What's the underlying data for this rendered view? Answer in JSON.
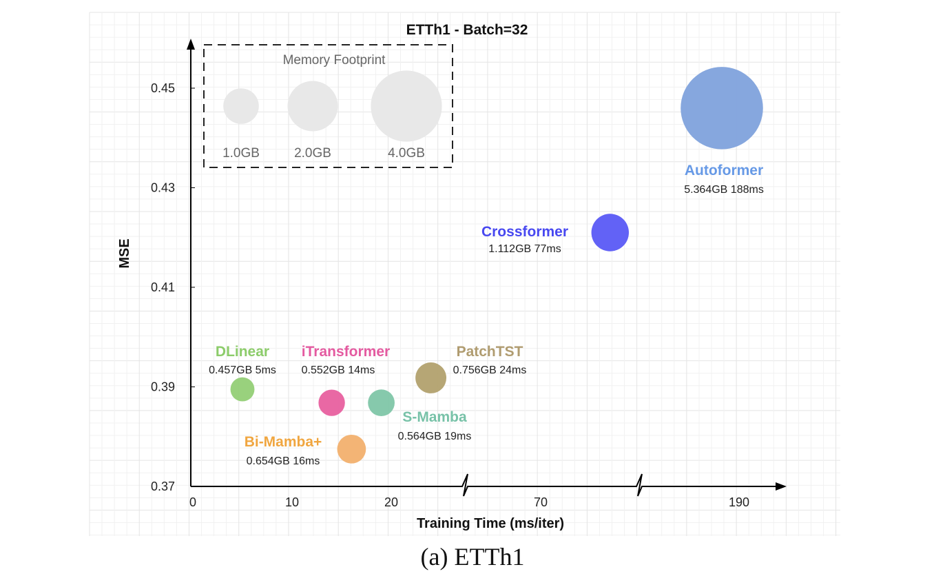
{
  "caption": "(a) ETTh1",
  "chart_data": {
    "type": "scatter",
    "title": "ETTh1 - Batch=32",
    "xlabel": "Training Time (ms/iter)",
    "ylabel": "MSE",
    "x_ticks": [
      "0",
      "10",
      "20",
      "70",
      "190"
    ],
    "y_ticks": [
      "0.37",
      "0.39",
      "0.41",
      "0.43",
      "0.45"
    ],
    "ylim": [
      0.37,
      0.45
    ],
    "x_axis_breaks": true,
    "grid": true,
    "size_encodes": "Memory Footprint",
    "legend": {
      "title": "Memory Footprint",
      "placement": "top-left",
      "entries": [
        {
          "label": "1.0GB",
          "memory_gb": 1.0
        },
        {
          "label": "2.0GB",
          "memory_gb": 2.0
        },
        {
          "label": "4.0GB",
          "memory_gb": 4.0
        }
      ]
    },
    "series": [
      {
        "name": "DLinear",
        "sublabel": "0.457GB 5ms",
        "x": 5,
        "y": 0.3895,
        "memory_gb": 0.457,
        "color": "#93cf76"
      },
      {
        "name": "iTransformer",
        "sublabel": "0.552GB 14ms",
        "x": 14,
        "y": 0.3868,
        "memory_gb": 0.552,
        "color": "#e8609f"
      },
      {
        "name": "S-Mamba",
        "sublabel": "0.564GB 19ms",
        "x": 19,
        "y": 0.3868,
        "memory_gb": 0.564,
        "color": "#7fc6a8"
      },
      {
        "name": "PatchTST",
        "sublabel": "0.756GB 24ms",
        "x": 24,
        "y": 0.3918,
        "memory_gb": 0.756,
        "color": "#b2a16e"
      },
      {
        "name": "Bi-Mamba+",
        "sublabel": "0.654GB 16ms",
        "x": 16,
        "y": 0.3775,
        "memory_gb": 0.654,
        "color": "#f2b06e"
      },
      {
        "name": "Crossformer",
        "sublabel": "1.112GB 77ms",
        "x": 77,
        "y": 0.421,
        "memory_gb": 1.112,
        "color": "#5a5af5"
      },
      {
        "name": "Autoformer",
        "sublabel": "5.364GB 188ms",
        "x": 188,
        "y": 0.446,
        "memory_gb": 5.364,
        "color": "#7fa2dc"
      }
    ]
  },
  "label_colors": {
    "DLinear": "#8ccc6a",
    "iTransformer": "#e45aa0",
    "S-Mamba": "#78c2a8",
    "PatchTST": "#b09c70",
    "Bi-Mamba+": "#f0a640",
    "Crossformer": "#4848f0",
    "Autoformer": "#6699e6"
  }
}
